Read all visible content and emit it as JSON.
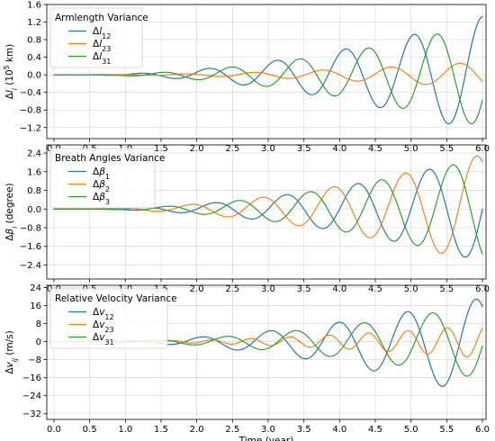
{
  "chart_data": [
    {
      "type": "line",
      "title": "",
      "xlabel": "",
      "ylabel": "Δl_i (10^5 km)",
      "xlim": [
        -0.1,
        6.05
      ],
      "ylim": [
        -1.45,
        1.6
      ],
      "xticks": [
        "0.0",
        "0.5",
        "1.0",
        "1.5",
        "2.0",
        "2.5",
        "3.0",
        "3.5",
        "4.0",
        "4.5",
        "5.0",
        "5.5",
        "6.0"
      ],
      "xtick_values": [
        0.0,
        0.5,
        1.0,
        1.5,
        2.0,
        2.5,
        3.0,
        3.5,
        4.0,
        4.5,
        5.0,
        5.5,
        6.0
      ],
      "yticks": [
        "−1.2",
        "−0.8",
        "−0.4",
        "0.0",
        "0.4",
        "0.8",
        "1.2",
        "1.6"
      ],
      "ytick_values": [
        -1.2,
        -0.8,
        -0.4,
        0.0,
        0.4,
        0.8,
        1.2,
        1.6
      ],
      "grid": true,
      "legend": {
        "title": "Armlength Variance",
        "placement": "top-left"
      },
      "series": [
        {
          "name": "Δl12",
          "color": "#1f77b4",
          "shape": {
            "growth": 1.44,
            "period": 0.96,
            "phase": 0.0
          }
        },
        {
          "name": "Δl23",
          "color": "#ff7f0e",
          "shape": {
            "growth": 0.32,
            "period": 0.96,
            "phase": 2.1
          }
        },
        {
          "name": "Δl31",
          "color": "#2ca02c",
          "shape": {
            "growth": 1.28,
            "period": 0.96,
            "phase": 4.2
          }
        }
      ]
    },
    {
      "type": "line",
      "title": "",
      "xlabel": "",
      "ylabel": "Δβ_i (degree)",
      "xlim": [
        -0.1,
        6.05
      ],
      "ylim": [
        -3.0,
        2.75
      ],
      "xticks": [
        "0.0",
        "0.5",
        "1.0",
        "1.5",
        "2.0",
        "2.5",
        "3.0",
        "3.5",
        "4.0",
        "4.5",
        "5.0",
        "5.5",
        "6.0"
      ],
      "xtick_values": [
        0.0,
        0.5,
        1.0,
        1.5,
        2.0,
        2.5,
        3.0,
        3.5,
        4.0,
        4.5,
        5.0,
        5.5,
        6.0
      ],
      "yticks": [
        "−2.4",
        "−1.6",
        "−0.8",
        "0.0",
        "0.8",
        "1.6",
        "2.4"
      ],
      "ytick_values": [
        -2.4,
        -1.6,
        -0.8,
        0.0,
        0.8,
        1.6,
        2.4
      ],
      "grid": true,
      "legend": {
        "title": "Breath Angles Variance",
        "placement": "top-left"
      },
      "series": [
        {
          "name": "Δβ1",
          "color": "#1f77b4",
          "shape": {
            "growth": 2.45,
            "period": 1.0,
            "phase": 0.0
          }
        },
        {
          "name": "Δβ2",
          "color": "#ff7f0e",
          "shape": {
            "growth": 2.55,
            "period": 1.0,
            "phase": 2.1
          }
        },
        {
          "name": "Δβ3",
          "color": "#2ca02c",
          "shape": {
            "growth": 2.4,
            "period": 1.0,
            "phase": 4.2
          }
        }
      ]
    },
    {
      "type": "line",
      "title": "",
      "xlabel": "Time (year)",
      "ylabel": "Δv_ij (m/s)",
      "xlim": [
        -0.1,
        6.05
      ],
      "ylim": [
        -34.5,
        25.0
      ],
      "xticks": [
        "0.0",
        "0.5",
        "1.0",
        "1.5",
        "2.0",
        "2.5",
        "3.0",
        "3.5",
        "4.0",
        "4.5",
        "5.0",
        "5.5",
        "6.0"
      ],
      "xtick_values": [
        0.0,
        0.5,
        1.0,
        1.5,
        2.0,
        2.5,
        3.0,
        3.5,
        4.0,
        4.5,
        5.0,
        5.5,
        6.0
      ],
      "yticks": [
        "−32",
        "−24",
        "−16",
        "−8",
        "0",
        "8",
        "16",
        "24"
      ],
      "ytick_values": [
        -32,
        -24,
        -16,
        -8,
        0,
        8,
        16,
        24
      ],
      "grid": true,
      "legend": {
        "title": "Relative Velocity Variance",
        "placement": "top-left"
      },
      "series": [
        {
          "name": "Δv12",
          "color": "#1f77b4",
          "shape": {
            "growth": 24.0,
            "period": 0.96,
            "phase": 0.6,
            "trend": -3.0
          }
        },
        {
          "name": "Δv23",
          "color": "#ff7f0e",
          "shape": {
            "growth": 8.0,
            "period": 0.55,
            "phase": 1.5
          }
        },
        {
          "name": "Δv31",
          "color": "#2ca02c",
          "shape": {
            "growth": 18.0,
            "period": 0.96,
            "phase": 4.6
          }
        }
      ]
    }
  ]
}
